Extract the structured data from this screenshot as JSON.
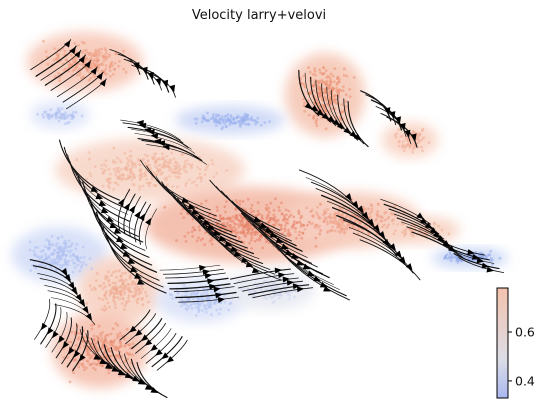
{
  "chart_data": {
    "type": "scatter",
    "title": "Velocity larry+velovi",
    "xlabel": "",
    "ylabel": "",
    "grid": false,
    "axes_visible": false,
    "overlay": "velocity streamlines (black arrows)",
    "colormap": [
      "#3b4cc0",
      "#aac7fd",
      "#dddddd",
      "#f7b89c",
      "#f08a6c",
      "#b40426"
    ],
    "colorbar": {
      "ticks": [
        0.4,
        0.6
      ],
      "tick_labels": [
        "0.4",
        "0.6"
      ],
      "range": [
        0.33,
        0.78
      ],
      "placement": "right"
    }
  }
}
